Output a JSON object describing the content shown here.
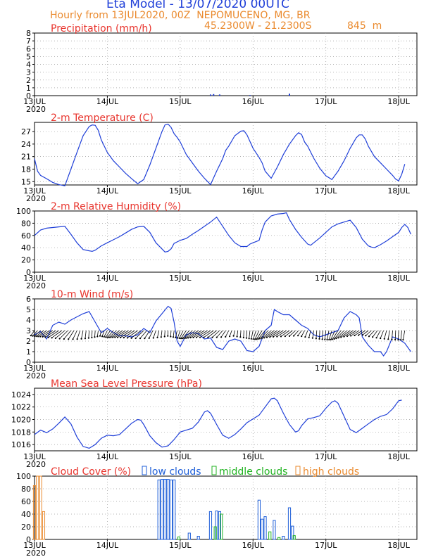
{
  "header": {
    "title": "Eta Model - 13/07/2020 00UTC",
    "subtitle": "Hourly from 13JUL2020, 00Z  NEPOMUCENO, MG, BR",
    "coords": "45.2300W - 21.2300S",
    "elevation": "845  m"
  },
  "colors": {
    "title": "#1f3fd8",
    "subtitle": "#ea8a2e",
    "panel_title": "#e8352e",
    "series": "#1f3fd8",
    "low_clouds": "#1f5fd8",
    "middle_clouds": "#21b321",
    "high_clouds": "#ea8a2e",
    "axis": "#000000",
    "grid": "#9a9a9a"
  },
  "days": [
    "13JUL",
    "14JUL",
    "15JUL",
    "16JUL",
    "17JUL",
    "18JUL"
  ],
  "year": "2020",
  "chart_data": [
    {
      "id": "precip",
      "type": "bar",
      "title": "Precipitation (mm/h)",
      "ylim": [
        0,
        8
      ],
      "yticks": [
        0,
        1,
        2,
        3,
        4,
        5,
        6,
        7,
        8
      ],
      "show_year": true,
      "bars": [
        [
          58,
          0.15
        ],
        [
          59,
          0.2
        ],
        [
          61,
          0.15
        ],
        [
          71,
          0.08
        ],
        [
          84,
          0.25
        ]
      ]
    },
    {
      "id": "temp",
      "type": "line",
      "title": "2-m Temperature (C)",
      "ylim": [
        14.2,
        29.2
      ],
      "yticks": [
        15,
        18,
        21,
        24,
        27
      ],
      "show_year": true,
      "series": [
        [
          0,
          20.5
        ],
        [
          1,
          17.5
        ],
        [
          2,
          16.5
        ],
        [
          4,
          15.7
        ],
        [
          6,
          14.8
        ],
        [
          8,
          14.3
        ],
        [
          10,
          14
        ],
        [
          12,
          18
        ],
        [
          14,
          22
        ],
        [
          16,
          26
        ],
        [
          18,
          28.2
        ],
        [
          19,
          28.6
        ],
        [
          20,
          28.5
        ],
        [
          21,
          27.3
        ],
        [
          22,
          25
        ],
        [
          24,
          22
        ],
        [
          26,
          20
        ],
        [
          28,
          18.5
        ],
        [
          30,
          17
        ],
        [
          32,
          15.7
        ],
        [
          34,
          14.5
        ],
        [
          36,
          15.5
        ],
        [
          38,
          19
        ],
        [
          40,
          23
        ],
        [
          42,
          27
        ],
        [
          43,
          28.6
        ],
        [
          44,
          28.8
        ],
        [
          45,
          28
        ],
        [
          46,
          26.5
        ],
        [
          47,
          25.6
        ],
        [
          48,
          24.5
        ],
        [
          50,
          21.5
        ],
        [
          52,
          19.5
        ],
        [
          54,
          17.5
        ],
        [
          56,
          15.8
        ],
        [
          58,
          14.3
        ],
        [
          60,
          17.5
        ],
        [
          62,
          20.5
        ],
        [
          63,
          22.5
        ],
        [
          64,
          23.5
        ],
        [
          66,
          26
        ],
        [
          68,
          27.1
        ],
        [
          69,
          27.2
        ],
        [
          70,
          26.2
        ],
        [
          72,
          23
        ],
        [
          74,
          20.8
        ],
        [
          75,
          19.5
        ],
        [
          76,
          17.5
        ],
        [
          78,
          15.8
        ],
        [
          80,
          18.5
        ],
        [
          82,
          21.5
        ],
        [
          84,
          24
        ],
        [
          86,
          26
        ],
        [
          87,
          26.7
        ],
        [
          88,
          26.3
        ],
        [
          89,
          24.5
        ],
        [
          90,
          23.5
        ],
        [
          92,
          20.6
        ],
        [
          94,
          18.2
        ],
        [
          96,
          16.4
        ],
        [
          98,
          15.5
        ],
        [
          100,
          17.5
        ],
        [
          102,
          20
        ],
        [
          104,
          23
        ],
        [
          106,
          25.5
        ],
        [
          107,
          26.2
        ],
        [
          108,
          26.2
        ],
        [
          109,
          25.2
        ],
        [
          110,
          23.5
        ],
        [
          112,
          21
        ],
        [
          114,
          19.5
        ],
        [
          116,
          18
        ],
        [
          118,
          16.5
        ],
        [
          119,
          15.6
        ],
        [
          120,
          15.2
        ],
        [
          121,
          16.8
        ],
        [
          122,
          19.2
        ]
      ]
    },
    {
      "id": "rh",
      "type": "line",
      "title": "2-m Relative Humidity (%)",
      "ylim": [
        0,
        100
      ],
      "yticks": [
        0,
        20,
        40,
        60,
        80,
        100
      ],
      "show_year": true,
      "series": [
        [
          0,
          60
        ],
        [
          2,
          69
        ],
        [
          4,
          72
        ],
        [
          6,
          73
        ],
        [
          8,
          74
        ],
        [
          10,
          75
        ],
        [
          12,
          62
        ],
        [
          14,
          48
        ],
        [
          16,
          37
        ],
        [
          18,
          35
        ],
        [
          19,
          34
        ],
        [
          20,
          36
        ],
        [
          22,
          43
        ],
        [
          24,
          48
        ],
        [
          26,
          53
        ],
        [
          28,
          58
        ],
        [
          30,
          64
        ],
        [
          32,
          70
        ],
        [
          34,
          74
        ],
        [
          36,
          75
        ],
        [
          38,
          65
        ],
        [
          40,
          48
        ],
        [
          42,
          38
        ],
        [
          43,
          33
        ],
        [
          44,
          34
        ],
        [
          45,
          38
        ],
        [
          46,
          47
        ],
        [
          48,
          52
        ],
        [
          50,
          55
        ],
        [
          52,
          62
        ],
        [
          54,
          68
        ],
        [
          56,
          75
        ],
        [
          58,
          82
        ],
        [
          60,
          90
        ],
        [
          62,
          75
        ],
        [
          64,
          60
        ],
        [
          66,
          48
        ],
        [
          68,
          42
        ],
        [
          70,
          42
        ],
        [
          71,
          46
        ],
        [
          72,
          48
        ],
        [
          74,
          52
        ],
        [
          75,
          69
        ],
        [
          76,
          82
        ],
        [
          78,
          92
        ],
        [
          80,
          95
        ],
        [
          82,
          96
        ],
        [
          83,
          97
        ],
        [
          84,
          86
        ],
        [
          86,
          70
        ],
        [
          88,
          57
        ],
        [
          90,
          46
        ],
        [
          91,
          44
        ],
        [
          92,
          48
        ],
        [
          94,
          56
        ],
        [
          96,
          65
        ],
        [
          98,
          74
        ],
        [
          100,
          79
        ],
        [
          102,
          82
        ],
        [
          104,
          85
        ],
        [
          106,
          73
        ],
        [
          108,
          54
        ],
        [
          110,
          43
        ],
        [
          111,
          41
        ],
        [
          112,
          40
        ],
        [
          114,
          45
        ],
        [
          116,
          51
        ],
        [
          118,
          58
        ],
        [
          120,
          65
        ],
        [
          121,
          73
        ],
        [
          122,
          78
        ],
        [
          123,
          73
        ],
        [
          124,
          62
        ]
      ]
    },
    {
      "id": "wind",
      "type": "line",
      "title": "10-m Wind (m/s)",
      "ylim": [
        0,
        6
      ],
      "yticks": [
        0,
        1,
        2,
        3,
        4,
        5,
        6
      ],
      "show_year": true,
      "series": [
        [
          0,
          2.6
        ],
        [
          2,
          2.9
        ],
        [
          4,
          2.2
        ],
        [
          6,
          3.5
        ],
        [
          8,
          3.8
        ],
        [
          10,
          3.6
        ],
        [
          12,
          4
        ],
        [
          14,
          4.3
        ],
        [
          16,
          4.6
        ],
        [
          18,
          4.8
        ],
        [
          20,
          3.8
        ],
        [
          22,
          2.8
        ],
        [
          24,
          3.2
        ],
        [
          26,
          2.8
        ],
        [
          28,
          2.5
        ],
        [
          30,
          2.5
        ],
        [
          32,
          2.4
        ],
        [
          34,
          2.6
        ],
        [
          36,
          3.2
        ],
        [
          38,
          2.8
        ],
        [
          40,
          3.9
        ],
        [
          42,
          4.6
        ],
        [
          44,
          5.3
        ],
        [
          45,
          5.1
        ],
        [
          46,
          3.8
        ],
        [
          47,
          2
        ],
        [
          48,
          1.5
        ],
        [
          50,
          2.6
        ],
        [
          52,
          2.8
        ],
        [
          54,
          2.7
        ],
        [
          56,
          2.2
        ],
        [
          58,
          2.3
        ],
        [
          60,
          1.4
        ],
        [
          62,
          1.2
        ],
        [
          64,
          2
        ],
        [
          66,
          2.2
        ],
        [
          68,
          2
        ],
        [
          70,
          1.1
        ],
        [
          72,
          1
        ],
        [
          74,
          1.5
        ],
        [
          76,
          3
        ],
        [
          78,
          3.5
        ],
        [
          79,
          5
        ],
        [
          80,
          4.8
        ],
        [
          82,
          4.5
        ],
        [
          84,
          4.5
        ],
        [
          86,
          4
        ],
        [
          88,
          3.5
        ],
        [
          90,
          3.2
        ],
        [
          92,
          2.6
        ],
        [
          94,
          2.4
        ],
        [
          96,
          2.6
        ],
        [
          98,
          2.8
        ],
        [
          100,
          3
        ],
        [
          102,
          4.2
        ],
        [
          104,
          4.8
        ],
        [
          106,
          4.5
        ],
        [
          107,
          4.2
        ],
        [
          108,
          2.4
        ],
        [
          110,
          1.6
        ],
        [
          112,
          1
        ],
        [
          114,
          1
        ],
        [
          115,
          0.6
        ],
        [
          116,
          1
        ],
        [
          118,
          2.4
        ],
        [
          120,
          2.2
        ],
        [
          122,
          1.8
        ],
        [
          124,
          1
        ]
      ]
    },
    {
      "id": "mslp",
      "type": "line",
      "title": "Mean Sea Level Pressure (hPa)",
      "ylim": [
        1015,
        1025
      ],
      "yticks": [
        1016,
        1018,
        1020,
        1022,
        1024
      ],
      "show_year": true,
      "series": [
        [
          0,
          1017.6
        ],
        [
          2,
          1018.3
        ],
        [
          4,
          1017.9
        ],
        [
          6,
          1018.5
        ],
        [
          8,
          1019.4
        ],
        [
          10,
          1020.4
        ],
        [
          12,
          1019.3
        ],
        [
          14,
          1017.2
        ],
        [
          16,
          1015.7
        ],
        [
          18,
          1015.4
        ],
        [
          20,
          1016
        ],
        [
          22,
          1017
        ],
        [
          24,
          1017.5
        ],
        [
          26,
          1017.4
        ],
        [
          28,
          1017.6
        ],
        [
          30,
          1018.5
        ],
        [
          32,
          1019.4
        ],
        [
          34,
          1020
        ],
        [
          35,
          1019.9
        ],
        [
          36,
          1019.2
        ],
        [
          38,
          1017.4
        ],
        [
          40,
          1016.3
        ],
        [
          42,
          1015.6
        ],
        [
          44,
          1015.8
        ],
        [
          46,
          1016.8
        ],
        [
          48,
          1018
        ],
        [
          50,
          1018.3
        ],
        [
          52,
          1018.6
        ],
        [
          54,
          1019.6
        ],
        [
          56,
          1021.2
        ],
        [
          57,
          1021.4
        ],
        [
          58,
          1021
        ],
        [
          60,
          1019.2
        ],
        [
          62,
          1017.5
        ],
        [
          64,
          1017
        ],
        [
          66,
          1017.6
        ],
        [
          68,
          1018.5
        ],
        [
          70,
          1019.5
        ],
        [
          72,
          1020.1
        ],
        [
          74,
          1020.7
        ],
        [
          76,
          1022
        ],
        [
          78,
          1023.3
        ],
        [
          79,
          1023.4
        ],
        [
          80,
          1023
        ],
        [
          82,
          1021
        ],
        [
          84,
          1019.2
        ],
        [
          86,
          1018
        ],
        [
          87,
          1018.2
        ],
        [
          88,
          1019
        ],
        [
          90,
          1020.1
        ],
        [
          92,
          1020.3
        ],
        [
          94,
          1020.6
        ],
        [
          96,
          1021.8
        ],
        [
          98,
          1022.8
        ],
        [
          99,
          1023
        ],
        [
          100,
          1022.6
        ],
        [
          102,
          1020.5
        ],
        [
          104,
          1018.4
        ],
        [
          106,
          1017.9
        ],
        [
          108,
          1018.6
        ],
        [
          110,
          1019.3
        ],
        [
          112,
          1020
        ],
        [
          114,
          1020.5
        ],
        [
          116,
          1020.8
        ],
        [
          118,
          1021.7
        ],
        [
          120,
          1023
        ],
        [
          121,
          1023.1
        ]
      ]
    },
    {
      "id": "cloud",
      "type": "bar",
      "title": "Cloud Cover (%)",
      "ylim": [
        0,
        100
      ],
      "yticks": [
        0,
        20,
        40,
        60,
        80,
        100
      ],
      "show_year": true,
      "legend": [
        "low clouds",
        "middle clouds",
        "high clouds"
      ],
      "low": [
        [
          41,
          94
        ],
        [
          42,
          95
        ],
        [
          43,
          95
        ],
        [
          44,
          95
        ],
        [
          45,
          94
        ],
        [
          46,
          94
        ],
        [
          51,
          10
        ],
        [
          54,
          5
        ],
        [
          58,
          44
        ],
        [
          60,
          45
        ],
        [
          61,
          44
        ],
        [
          74,
          62
        ],
        [
          75,
          32
        ],
        [
          76,
          36
        ],
        [
          79,
          30
        ],
        [
          82,
          5
        ],
        [
          84,
          50
        ],
        [
          85,
          21
        ]
      ],
      "middle": [
        [
          47,
          4
        ],
        [
          59,
          20
        ],
        [
          61,
          40
        ],
        [
          77,
          12
        ],
        [
          80,
          3
        ],
        [
          85,
          6
        ]
      ],
      "high": [
        [
          0,
          85
        ],
        [
          1,
          100
        ],
        [
          2,
          100
        ],
        [
          3,
          44
        ]
      ]
    }
  ]
}
